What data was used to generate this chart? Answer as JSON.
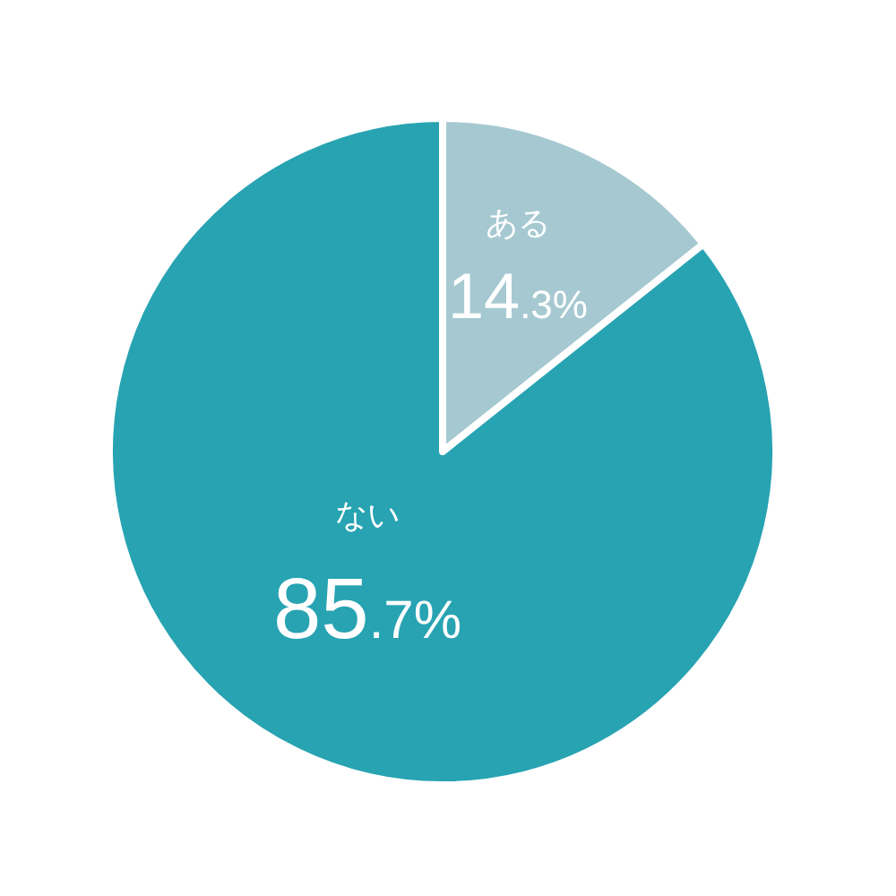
{
  "chart_data": {
    "type": "pie",
    "categories": [
      "ある",
      "ない"
    ],
    "values": [
      14.3,
      85.7
    ],
    "colors": [
      "#a6c9d1",
      "#27a3b2"
    ],
    "value_labels": [
      "14.3%",
      "85.7%"
    ]
  }
}
